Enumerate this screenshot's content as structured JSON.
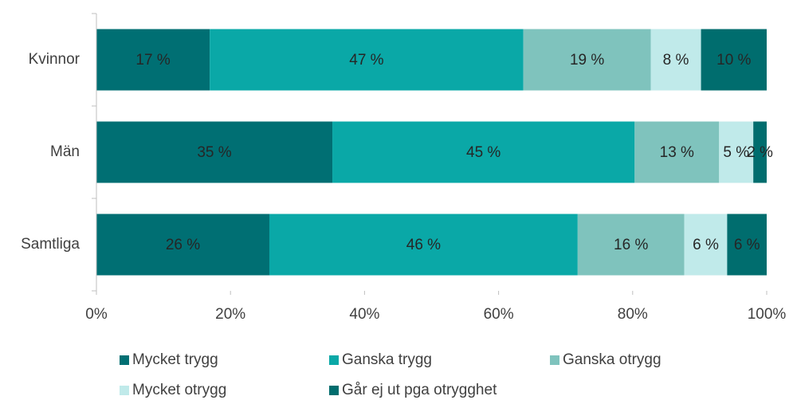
{
  "chart_data": {
    "type": "stacked_bar_horizontal",
    "categories": [
      "Kvinnor",
      "Män",
      "Samtliga"
    ],
    "series": [
      {
        "name": "Mycket trygg",
        "color": "#006f73",
        "values": [
          16.9,
          35.2,
          25.8
        ],
        "value_labels": [
          "17 %",
          "35 %",
          "26 %"
        ]
      },
      {
        "name": "Ganska trygg",
        "color": "#0aa8a7",
        "values": [
          46.8,
          45.1,
          46.0
        ],
        "value_labels": [
          "47 %",
          "45 %",
          "46 %"
        ]
      },
      {
        "name": "Ganska otrygg",
        "color": "#7fc3bd",
        "values": [
          19.0,
          12.6,
          15.9
        ],
        "value_labels": [
          "19 %",
          "13 %",
          "16 %"
        ]
      },
      {
        "name": "Mycket otrygg",
        "color": "#c0eaea",
        "values": [
          7.5,
          5.1,
          6.4
        ],
        "value_labels": [
          "8 %",
          "5 %",
          "6 %"
        ]
      },
      {
        "name": "Går ej ut pga otrygghet",
        "color": "#006d6e",
        "values": [
          9.8,
          2.0,
          5.9
        ],
        "value_labels": [
          "10 %",
          "2 %",
          "6 %"
        ]
      }
    ],
    "xlim": [
      0,
      100
    ],
    "xticks": [
      {
        "value": 0,
        "label": "0%"
      },
      {
        "value": 20,
        "label": "20%"
      },
      {
        "value": 40,
        "label": "40%"
      },
      {
        "value": 60,
        "label": "60%"
      },
      {
        "value": 80,
        "label": "80%"
      },
      {
        "value": 100,
        "label": "100%"
      }
    ],
    "legend": "bottom"
  }
}
